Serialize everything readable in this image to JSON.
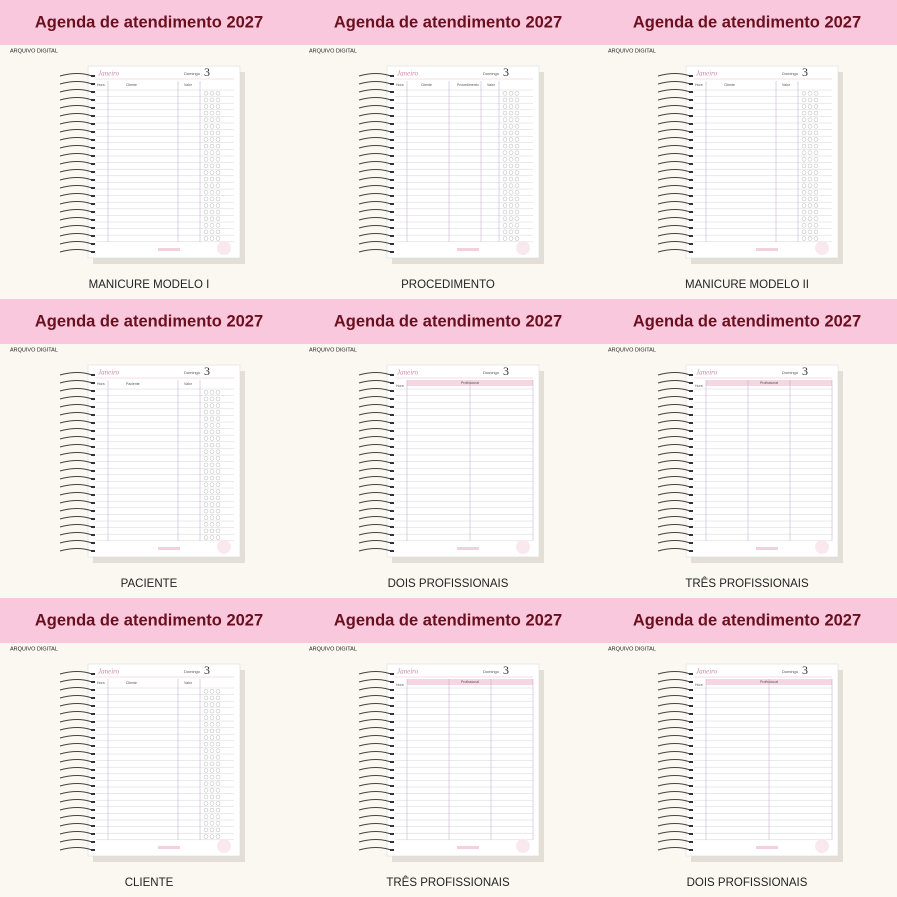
{
  "title": "Agenda de atendimento 2027",
  "tag": "ARQUIVO DIGITAL",
  "planner": {
    "month": "Janeiro",
    "weekday": "Domingo",
    "day": "3"
  },
  "cells": [
    {
      "caption": "MANICURE MODELO I",
      "columns": [
        "Hora",
        "Cliente",
        "Valor"
      ]
    },
    {
      "caption": "PROCEDIMENTO",
      "columns": [
        "Hora",
        "Cliente",
        "Procedimento",
        "Valor"
      ]
    },
    {
      "caption": "MANICURE MODELO II",
      "columns": [
        "Hora",
        "Cliente",
        "Valor"
      ]
    },
    {
      "caption": "PACIENTE",
      "columns": [
        "Hora",
        "Paciente",
        "Valor"
      ]
    },
    {
      "caption": "DOIS PROFISSIONAIS",
      "columns": [
        "Hora",
        "Profissional"
      ],
      "professionals": 2
    },
    {
      "caption": "TRÊS PROFISSIONAIS",
      "columns": [
        "Hora",
        "Profissional"
      ],
      "professionals": 3
    },
    {
      "caption": "CLIENTE",
      "columns": [
        "Hora",
        "Cliente",
        "Valor"
      ]
    },
    {
      "caption": "TRÊS PROFISSIONAIS",
      "columns": [
        "Hora",
        "Profissional"
      ],
      "professionals": 3
    },
    {
      "caption": "DOIS PROFISSIONAIS",
      "columns": [
        "Hora",
        "Profissional"
      ],
      "professionals": 2
    }
  ]
}
